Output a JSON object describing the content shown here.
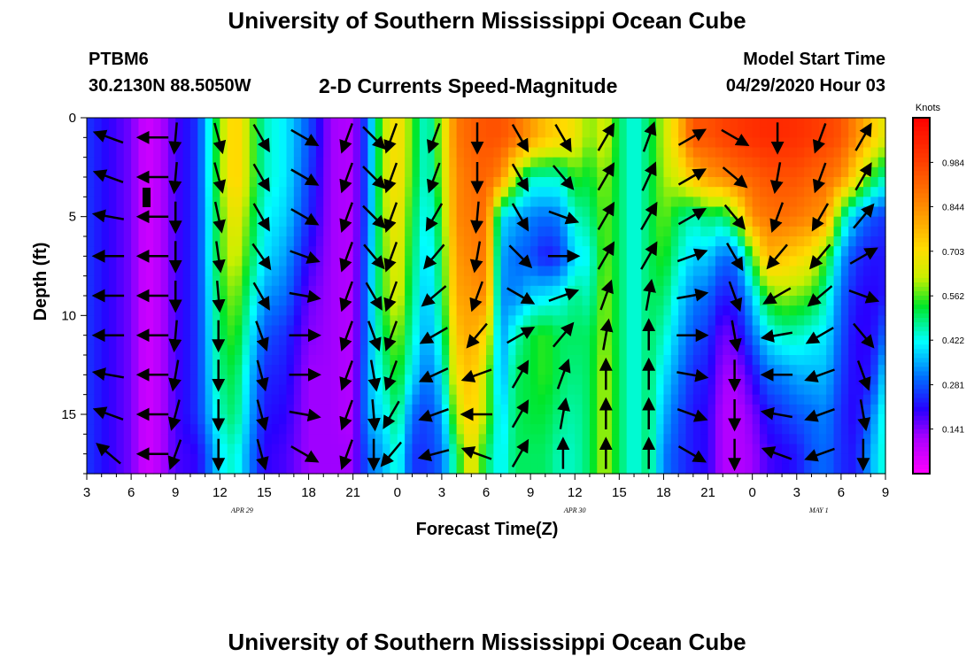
{
  "header": {
    "title": "University of Southern Mississippi Ocean Cube",
    "station_id": "PTBM6",
    "station_coords": "30.2130N 88.5050W",
    "subtitle": "2-D Currents Speed-Magnitude",
    "model_label": "Model Start Time",
    "model_time": "04/29/2020 Hour 03"
  },
  "footer": {
    "title": "University of Southern Mississippi Ocean Cube"
  },
  "chart_data": {
    "type": "heatmap",
    "title": "2-D Currents Speed-Magnitude",
    "xlabel": "Forecast Time(Z)",
    "ylabel": "Depth (ft)",
    "x_range_hours": [
      0,
      54
    ],
    "y_range_ft": [
      0,
      18
    ],
    "x_ticks": [
      {
        "h": 0,
        "label": "3"
      },
      {
        "h": 3,
        "label": "6"
      },
      {
        "h": 6,
        "label": "9"
      },
      {
        "h": 9,
        "label": "12"
      },
      {
        "h": 12,
        "label": "15"
      },
      {
        "h": 15,
        "label": "18"
      },
      {
        "h": 18,
        "label": "21"
      },
      {
        "h": 21,
        "label": "0"
      },
      {
        "h": 24,
        "label": "3"
      },
      {
        "h": 27,
        "label": "6"
      },
      {
        "h": 30,
        "label": "9"
      },
      {
        "h": 33,
        "label": "12"
      },
      {
        "h": 36,
        "label": "15"
      },
      {
        "h": 39,
        "label": "18"
      },
      {
        "h": 42,
        "label": "21"
      },
      {
        "h": 45,
        "label": "0"
      },
      {
        "h": 48,
        "label": "3"
      },
      {
        "h": 51,
        "label": "6"
      },
      {
        "h": 54,
        "label": "9"
      }
    ],
    "y_ticks": [
      0,
      5,
      10,
      15
    ],
    "date_labels": [
      {
        "h": 10.5,
        "label": "APR 29"
      },
      {
        "h": 33,
        "label": "APR 30"
      },
      {
        "h": 49.5,
        "label": "MAY 1"
      }
    ],
    "colorbar": {
      "unit": "Knots",
      "min": 0.0,
      "max": 1.125,
      "ticks": [
        0.141,
        0.281,
        0.422,
        0.562,
        0.703,
        0.844,
        0.984
      ]
    },
    "depths_ft": [
      1,
      3,
      5,
      7,
      9,
      11,
      13,
      15,
      17
    ],
    "speed_profiles_knots": [
      {
        "h": 0,
        "speed": [
          0.25,
          0.25,
          0.25,
          0.25,
          0.25,
          0.25,
          0.25,
          0.25,
          0.25
        ]
      },
      {
        "h": 3,
        "speed": [
          0.15,
          0.15,
          0.15,
          0.15,
          0.15,
          0.15,
          0.15,
          0.15,
          0.15
        ]
      },
      {
        "h": 4,
        "speed": [
          0.06,
          0.06,
          0.06,
          0.06,
          0.06,
          0.06,
          0.06,
          0.06,
          0.06
        ]
      },
      {
        "h": 5,
        "speed": [
          0.1,
          0.1,
          0.1,
          0.1,
          0.1,
          0.1,
          0.1,
          0.1,
          0.1
        ]
      },
      {
        "h": 6,
        "speed": [
          0.18,
          0.18,
          0.18,
          0.18,
          0.18,
          0.18,
          0.18,
          0.18,
          0.18
        ]
      },
      {
        "h": 7.5,
        "speed": [
          0.25,
          0.25,
          0.25,
          0.25,
          0.25,
          0.25,
          0.25,
          0.25,
          0.2
        ]
      },
      {
        "h": 9,
        "speed": [
          0.58,
          0.58,
          0.55,
          0.55,
          0.52,
          0.5,
          0.48,
          0.45,
          0.4
        ]
      },
      {
        "h": 10,
        "speed": [
          0.75,
          0.75,
          0.7,
          0.65,
          0.6,
          0.56,
          0.52,
          0.5,
          0.45
        ]
      },
      {
        "h": 12,
        "speed": [
          0.45,
          0.45,
          0.42,
          0.4,
          0.34,
          0.28,
          0.24,
          0.22,
          0.2
        ]
      },
      {
        "h": 13.5,
        "speed": [
          0.4,
          0.4,
          0.38,
          0.34,
          0.3,
          0.24,
          0.22,
          0.2,
          0.18
        ]
      },
      {
        "h": 15,
        "speed": [
          0.28,
          0.26,
          0.24,
          0.2,
          0.16,
          0.14,
          0.12,
          0.12,
          0.12
        ]
      },
      {
        "h": 16.5,
        "speed": [
          0.12,
          0.12,
          0.12,
          0.12,
          0.12,
          0.12,
          0.12,
          0.12,
          0.12
        ]
      },
      {
        "h": 18,
        "speed": [
          0.1,
          0.1,
          0.1,
          0.1,
          0.1,
          0.1,
          0.1,
          0.1,
          0.12
        ]
      },
      {
        "h": 19,
        "speed": [
          0.3,
          0.3,
          0.3,
          0.32,
          0.33,
          0.33,
          0.35,
          0.35,
          0.3
        ]
      },
      {
        "h": 20,
        "speed": [
          0.6,
          0.6,
          0.58,
          0.56,
          0.55,
          0.5,
          0.45,
          0.4,
          0.35
        ]
      },
      {
        "h": 21,
        "speed": [
          0.72,
          0.72,
          0.7,
          0.68,
          0.66,
          0.6,
          0.55,
          0.5,
          0.45
        ]
      },
      {
        "h": 22,
        "speed": [
          0.56,
          0.55,
          0.52,
          0.5,
          0.48,
          0.45,
          0.4,
          0.3,
          0.25
        ]
      },
      {
        "h": 23,
        "speed": [
          0.42,
          0.42,
          0.4,
          0.38,
          0.36,
          0.34,
          0.3,
          0.26,
          0.25
        ]
      },
      {
        "h": 24,
        "speed": [
          0.62,
          0.6,
          0.55,
          0.52,
          0.5,
          0.46,
          0.4,
          0.34,
          0.3
        ]
      },
      {
        "h": 25,
        "speed": [
          0.88,
          0.85,
          0.85,
          0.82,
          0.8,
          0.75,
          0.7,
          0.62,
          0.5
        ]
      },
      {
        "h": 26,
        "speed": [
          0.92,
          0.9,
          0.88,
          0.86,
          0.82,
          0.8,
          0.76,
          0.74,
          0.7
        ]
      },
      {
        "h": 27,
        "speed": [
          0.95,
          0.92,
          0.9,
          0.88,
          0.85,
          0.7,
          0.62,
          0.6,
          0.5
        ]
      },
      {
        "h": 28,
        "speed": [
          0.95,
          0.85,
          0.4,
          0.35,
          0.33,
          0.33,
          0.34,
          0.38,
          0.4
        ]
      },
      {
        "h": 29,
        "speed": [
          0.9,
          0.6,
          0.35,
          0.3,
          0.32,
          0.45,
          0.5,
          0.5,
          0.5
        ]
      },
      {
        "h": 30,
        "speed": [
          0.82,
          0.45,
          0.32,
          0.28,
          0.38,
          0.52,
          0.52,
          0.52,
          0.5
        ]
      },
      {
        "h": 31,
        "speed": [
          0.75,
          0.45,
          0.3,
          0.22,
          0.4,
          0.55,
          0.55,
          0.52,
          0.5
        ]
      },
      {
        "h": 32,
        "speed": [
          0.72,
          0.45,
          0.32,
          0.25,
          0.42,
          0.5,
          0.5,
          0.48,
          0.45
        ]
      },
      {
        "h": 33,
        "speed": [
          0.68,
          0.55,
          0.45,
          0.4,
          0.48,
          0.5,
          0.48,
          0.46,
          0.45
        ]
      },
      {
        "h": 34,
        "speed": [
          0.58,
          0.52,
          0.48,
          0.42,
          0.45,
          0.5,
          0.5,
          0.5,
          0.5
        ]
      },
      {
        "h": 35,
        "speed": [
          0.65,
          0.6,
          0.58,
          0.58,
          0.6,
          0.6,
          0.62,
          0.62,
          0.62
        ]
      },
      {
        "h": 36,
        "speed": [
          0.5,
          0.5,
          0.5,
          0.5,
          0.5,
          0.5,
          0.5,
          0.5,
          0.5
        ]
      },
      {
        "h": 37,
        "speed": [
          0.42,
          0.42,
          0.42,
          0.42,
          0.42,
          0.42,
          0.42,
          0.42,
          0.42
        ]
      },
      {
        "h": 38,
        "speed": [
          0.5,
          0.5,
          0.5,
          0.5,
          0.5,
          0.5,
          0.5,
          0.5,
          0.5
        ]
      },
      {
        "h": 39,
        "speed": [
          0.62,
          0.6,
          0.58,
          0.55,
          0.5,
          0.45,
          0.4,
          0.36,
          0.32
        ]
      },
      {
        "h": 40,
        "speed": [
          0.75,
          0.65,
          0.5,
          0.45,
          0.4,
          0.36,
          0.32,
          0.28,
          0.26
        ]
      },
      {
        "h": 41,
        "speed": [
          0.95,
          0.75,
          0.45,
          0.38,
          0.32,
          0.28,
          0.24,
          0.22,
          0.22
        ]
      },
      {
        "h": 42,
        "speed": [
          0.95,
          0.82,
          0.5,
          0.38,
          0.3,
          0.25,
          0.22,
          0.2,
          0.2
        ]
      },
      {
        "h": 43,
        "speed": [
          0.98,
          0.85,
          0.48,
          0.3,
          0.22,
          0.15,
          0.12,
          0.1,
          0.1
        ]
      },
      {
        "h": 44,
        "speed": [
          1.0,
          0.9,
          0.62,
          0.32,
          0.25,
          0.18,
          0.12,
          0.1,
          0.1
        ]
      },
      {
        "h": 45,
        "speed": [
          1.02,
          0.92,
          0.85,
          0.55,
          0.38,
          0.3,
          0.2,
          0.14,
          0.12
        ]
      },
      {
        "h": 46,
        "speed": [
          1.03,
          0.95,
          0.88,
          0.78,
          0.55,
          0.4,
          0.3,
          0.22,
          0.18
        ]
      },
      {
        "h": 47,
        "speed": [
          1.03,
          0.95,
          0.9,
          0.75,
          0.6,
          0.45,
          0.32,
          0.25,
          0.2
        ]
      },
      {
        "h": 48,
        "speed": [
          1.02,
          0.95,
          0.88,
          0.72,
          0.58,
          0.45,
          0.35,
          0.28,
          0.22
        ]
      },
      {
        "h": 49,
        "speed": [
          1.0,
          0.92,
          0.85,
          0.68,
          0.55,
          0.42,
          0.36,
          0.3,
          0.28
        ]
      },
      {
        "h": 50,
        "speed": [
          0.98,
          0.9,
          0.82,
          0.55,
          0.45,
          0.4,
          0.36,
          0.32,
          0.3
        ]
      },
      {
        "h": 51,
        "speed": [
          0.95,
          0.85,
          0.5,
          0.35,
          0.3,
          0.28,
          0.26,
          0.24,
          0.24
        ]
      },
      {
        "h": 52,
        "speed": [
          0.85,
          0.7,
          0.35,
          0.25,
          0.22,
          0.2,
          0.2,
          0.2,
          0.22
        ]
      },
      {
        "h": 53,
        "speed": [
          0.75,
          0.55,
          0.28,
          0.22,
          0.2,
          0.2,
          0.22,
          0.3,
          0.35
        ]
      },
      {
        "h": 54,
        "speed": [
          0.65,
          0.45,
          0.25,
          0.22,
          0.22,
          0.3,
          0.4,
          0.45,
          0.45
        ]
      }
    ],
    "direction_profiles_deg": [
      {
        "h": 1.5,
        "dir": [
          290,
          290,
          280,
          270,
          270,
          270,
          280,
          290,
          310
        ]
      },
      {
        "h": 4.5,
        "dir": [
          270,
          270,
          270,
          270,
          270,
          270,
          270,
          270,
          270
        ]
      },
      {
        "h": 6,
        "dir": [
          185,
          185,
          180,
          180,
          180,
          185,
          190,
          195,
          200
        ]
      },
      {
        "h": 8.9,
        "dir": [
          165,
          165,
          168,
          172,
          175,
          180,
          180,
          180,
          180
        ]
      },
      {
        "h": 11.8,
        "dir": [
          150,
          150,
          150,
          145,
          150,
          160,
          165,
          165,
          165
        ]
      },
      {
        "h": 14.7,
        "dir": [
          120,
          120,
          120,
          110,
          100,
          90,
          90,
          100,
          120
        ]
      },
      {
        "h": 17.6,
        "dir": [
          200,
          200,
          200,
          200,
          200,
          200,
          200,
          200,
          200
        ]
      },
      {
        "h": 19.4,
        "dir": [
          135,
          135,
          135,
          140,
          150,
          160,
          170,
          175,
          180
        ]
      },
      {
        "h": 20.6,
        "dir": [
          200,
          200,
          200,
          200,
          200,
          200,
          200,
          210,
          220
        ]
      },
      {
        "h": 23.5,
        "dir": [
          200,
          200,
          210,
          220,
          230,
          240,
          245,
          250,
          255
        ]
      },
      {
        "h": 26.4,
        "dir": [
          180,
          180,
          185,
          190,
          200,
          220,
          250,
          270,
          290
        ]
      },
      {
        "h": 29.3,
        "dir": [
          150,
          150,
          150,
          135,
          120,
          60,
          30,
          30,
          30
        ]
      },
      {
        "h": 32.2,
        "dir": [
          150,
          140,
          110,
          90,
          70,
          40,
          20,
          10,
          0
        ]
      },
      {
        "h": 35.1,
        "dir": [
          30,
          30,
          30,
          30,
          20,
          10,
          0,
          0,
          0
        ]
      },
      {
        "h": 38,
        "dir": [
          20,
          25,
          30,
          30,
          10,
          0,
          0,
          0,
          0
        ]
      },
      {
        "h": 40.9,
        "dir": [
          60,
          60,
          60,
          70,
          80,
          90,
          100,
          110,
          120
        ]
      },
      {
        "h": 43.8,
        "dir": [
          120,
          130,
          140,
          150,
          160,
          170,
          180,
          180,
          180
        ]
      },
      {
        "h": 46.7,
        "dir": [
          180,
          190,
          200,
          220,
          240,
          260,
          270,
          280,
          290
        ]
      },
      {
        "h": 49.6,
        "dir": [
          200,
          200,
          210,
          220,
          230,
          240,
          250,
          250,
          250
        ]
      },
      {
        "h": 52.5,
        "dir": [
          30,
          30,
          40,
          60,
          110,
          140,
          160,
          170,
          180
        ]
      }
    ]
  }
}
